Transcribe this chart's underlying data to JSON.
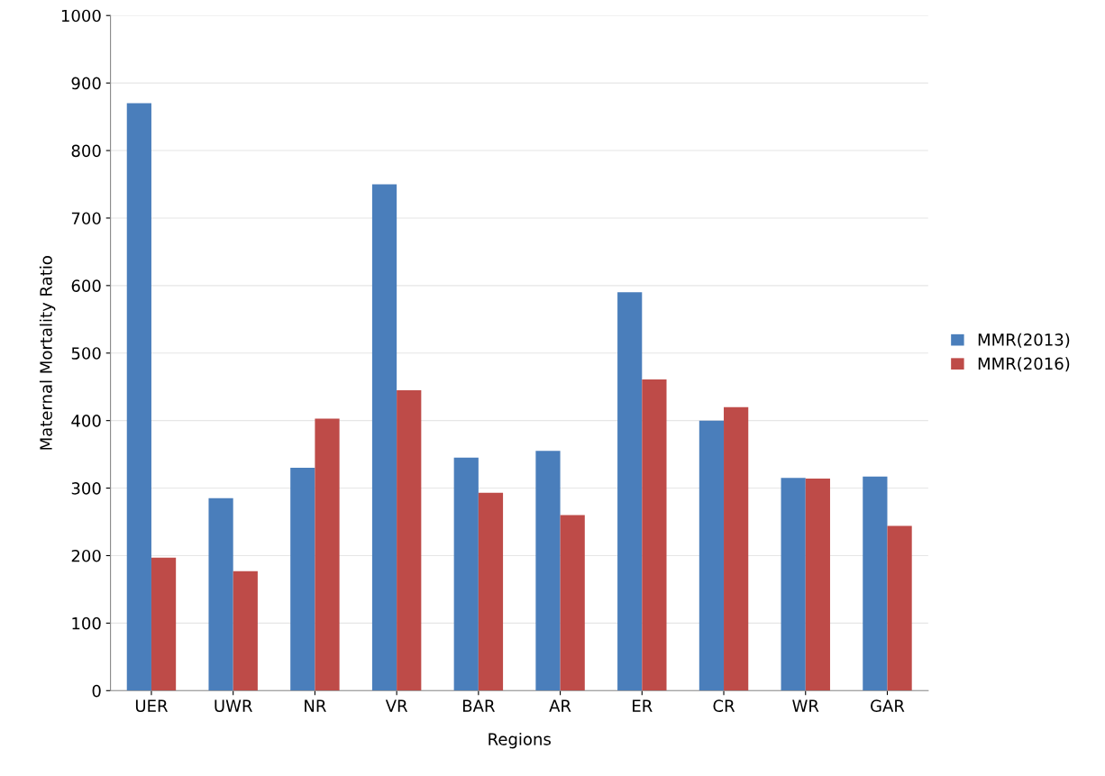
{
  "chart_data": {
    "type": "bar",
    "xlabel": "Regions",
    "ylabel": "Maternal Mortality Ratio",
    "categories": [
      "UER",
      "UWR",
      "NR",
      "VR",
      "BAR",
      "AR",
      "ER",
      "CR",
      "WR",
      "GAR"
    ],
    "series": [
      {
        "name": "MMR(2013)",
        "color": "#4a7ebb",
        "values": [
          870,
          285,
          330,
          750,
          345,
          355,
          590,
          400,
          315,
          317
        ]
      },
      {
        "name": "MMR(2016)",
        "color": "#be4b48",
        "values": [
          197,
          177,
          403,
          445,
          293,
          260,
          461,
          420,
          314,
          244
        ]
      }
    ],
    "ylim": [
      0,
      1000
    ],
    "yticks": [
      0,
      100,
      200,
      300,
      400,
      500,
      600,
      700,
      800,
      900,
      1000
    ],
    "grid": "y",
    "legend": "right"
  }
}
